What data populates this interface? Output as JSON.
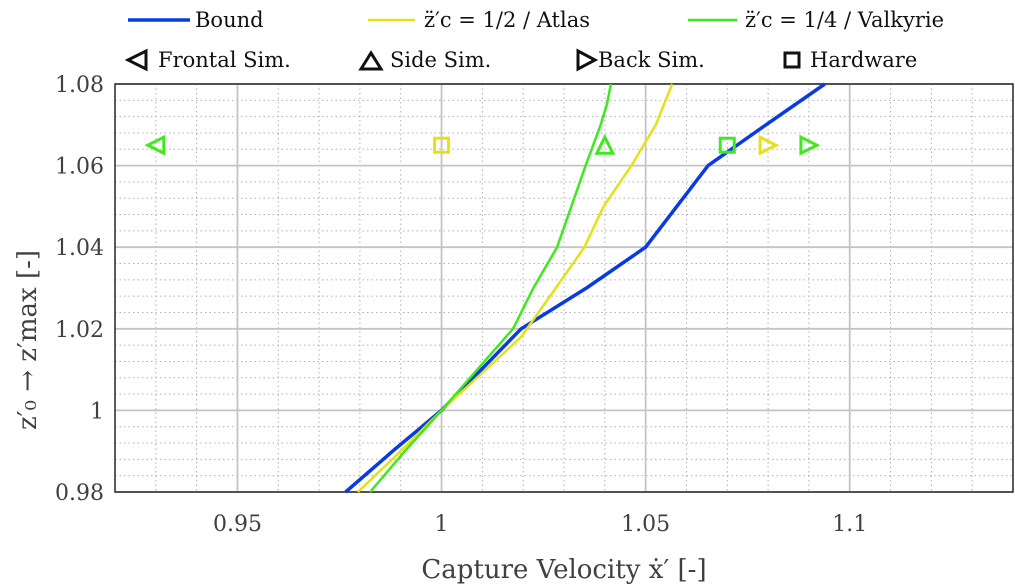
{
  "chart_data": {
    "type": "line",
    "xlabel": "Capture Velocity ẋ′ [-]",
    "ylabel": "z′₀ → z′max [-]",
    "xlim": [
      0.92,
      1.14
    ],
    "ylim": [
      0.98,
      1.08
    ],
    "x_ticks": [
      "0.95",
      "1",
      "1.05",
      "1.1"
    ],
    "x_tick_values": [
      0.95,
      1.0,
      1.05,
      1.1
    ],
    "y_ticks": [
      "0.98",
      "1",
      "1.02",
      "1.04",
      "1.06",
      "1.08"
    ],
    "y_tick_values": [
      0.98,
      1.0,
      1.02,
      1.04,
      1.06,
      1.08
    ],
    "grid": true,
    "minor_grid": true,
    "legend": {
      "placement": "top",
      "lines": [
        {
          "label": "Bound",
          "color": "#0a3be0"
        },
        {
          "label": "z̈′c = 1/2 / Atlas",
          "color": "#e2e21a"
        },
        {
          "label": "z̈′c = 1/4 / Valkyrie",
          "color": "#3fe81f"
        }
      ],
      "markers": [
        {
          "label": "Frontal Sim.",
          "symbol": "triangle-left"
        },
        {
          "label": "Side Sim.",
          "symbol": "triangle-up"
        },
        {
          "label": "Back Sim.",
          "symbol": "triangle-right"
        },
        {
          "label": "Hardware",
          "symbol": "square"
        }
      ]
    },
    "series": [
      {
        "name": "Bound",
        "color": "#0a3be0",
        "x": [
          0.9765,
          0.988,
          1.0,
          1.0195,
          1.0355,
          1.05,
          1.0653,
          1.0795,
          1.0939
        ],
        "y": [
          0.98,
          0.99,
          1.0,
          1.02,
          1.03,
          1.04,
          1.06,
          1.07,
          1.08
        ]
      },
      {
        "name": "z̈′c = 1/2 / Atlas",
        "color": "#e2e21a",
        "x": [
          0.9795,
          0.99,
          1.0,
          1.0195,
          1.028,
          1.035,
          1.0397,
          1.0465,
          1.0495,
          1.0525,
          1.0565
        ],
        "y": [
          0.98,
          0.99,
          1.0,
          1.018,
          1.03,
          1.04,
          1.05,
          1.06,
          1.065,
          1.07,
          1.08
        ]
      },
      {
        "name": "z̈′c = 1/4 / Valkyrie",
        "color": "#3fe81f",
        "x": [
          0.9825,
          0.991,
          1.0,
          1.0175,
          1.0225,
          1.0283,
          1.0353,
          1.039,
          1.0405,
          1.0415
        ],
        "y": [
          0.98,
          0.99,
          1.0,
          1.02,
          1.03,
          1.04,
          1.06,
          1.07,
          1.075,
          1.08
        ]
      }
    ],
    "points": [
      {
        "type": "Frontal Sim.",
        "symbol": "triangle-left",
        "x": 0.93,
        "y": 1.065,
        "color": "#3fe81f"
      },
      {
        "type": "Side Sim.",
        "symbol": "triangle-up",
        "x": 1.04,
        "y": 1.065,
        "color": "#3fe81f"
      },
      {
        "type": "Back Sim.",
        "symbol": "triangle-right",
        "x": 1.08,
        "y": 1.065,
        "color": "#e2e21a"
      },
      {
        "type": "Back Sim.",
        "symbol": "triangle-right",
        "x": 1.09,
        "y": 1.065,
        "color": "#3fe81f"
      },
      {
        "type": "Hardware",
        "symbol": "square",
        "x": 1.0,
        "y": 1.065,
        "color": "#e2e21a"
      },
      {
        "type": "Hardware",
        "symbol": "square",
        "x": 1.07,
        "y": 1.065,
        "color": "#3fe81f"
      }
    ]
  }
}
